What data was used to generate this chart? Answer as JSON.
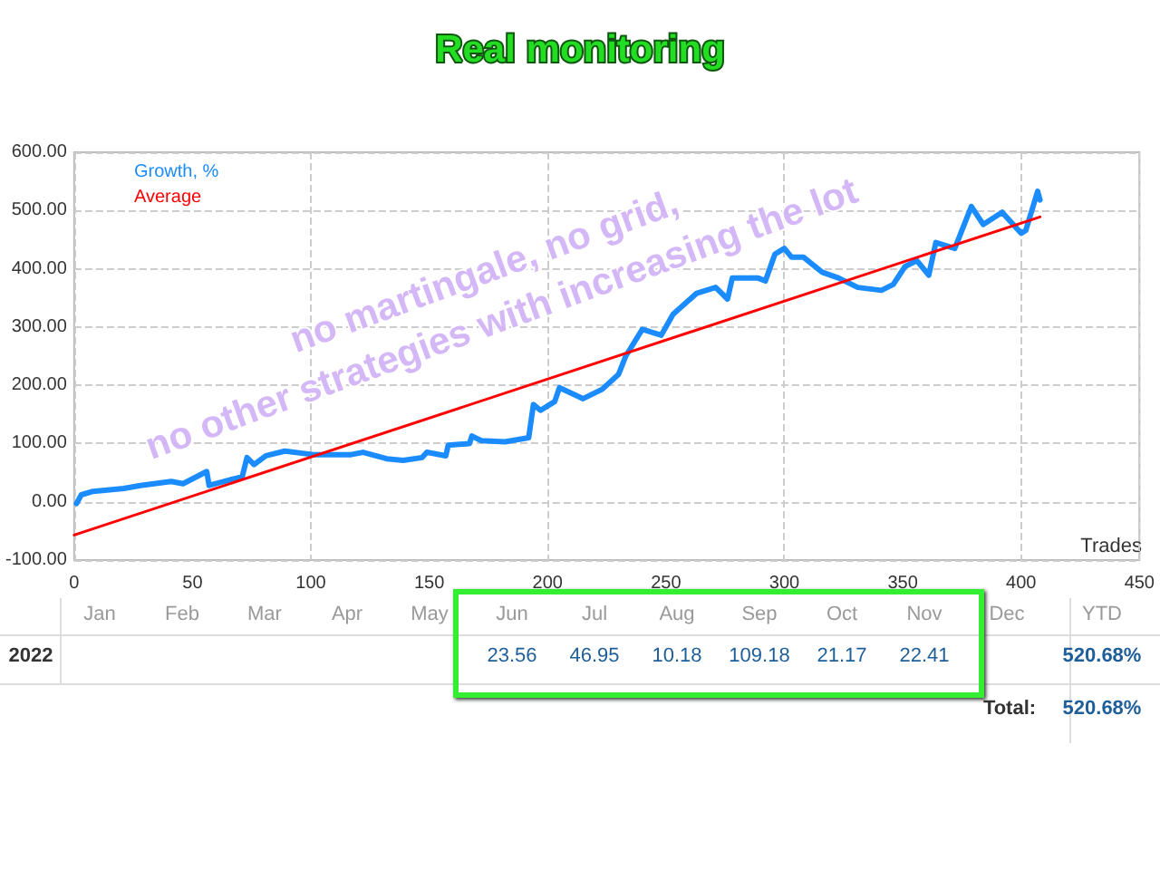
{
  "chart_data": [
    {
      "type": "line",
      "title": "Real monitoring",
      "xlabel": "Trades",
      "annotations": [
        "no martingale, no grid,\nno other strategies with increasing the lot"
      ],
      "xlim": [
        0,
        450
      ],
      "xticks": [
        0,
        50,
        100,
        150,
        200,
        250,
        300,
        350,
        400,
        450
      ],
      "ylim": [
        -100,
        600
      ],
      "yticks": [
        {
          "value": -100,
          "label": "-100.00"
        },
        {
          "value": 0,
          "label": "0.00"
        },
        {
          "value": 100,
          "label": "100.00"
        },
        {
          "value": 200,
          "label": "200.00"
        },
        {
          "value": 300,
          "label": "300.00"
        },
        {
          "value": 400,
          "label": "400.00"
        },
        {
          "value": 500,
          "label": "500.00"
        },
        {
          "value": 600,
          "label": "600.00"
        }
      ],
      "grid": true,
      "legend": "top left",
      "marker": "none",
      "line_style": "solid",
      "series": [
        {
          "name": "Growth, %",
          "color": "#1a8cff",
          "x": [
            1,
            3,
            8,
            21,
            28,
            41,
            46,
            56,
            57,
            66,
            71,
            73,
            76,
            81,
            89,
            101,
            117,
            122,
            132,
            139,
            147,
            149,
            157,
            158,
            167,
            168,
            172,
            182,
            192,
            194,
            197,
            203,
            205,
            215,
            223,
            230,
            233,
            240,
            248,
            253,
            263,
            271,
            276,
            278,
            289,
            292,
            296,
            300,
            303,
            308,
            316,
            323,
            331,
            341,
            346,
            351,
            356,
            361,
            364,
            372,
            379,
            384,
            392,
            400,
            402,
            407,
            408
          ],
          "values": [
            -3,
            12,
            18,
            23,
            28,
            35,
            31,
            52,
            28,
            38,
            43,
            76,
            64,
            79,
            87,
            81,
            81,
            85,
            74,
            71,
            76,
            85,
            79,
            97,
            100,
            113,
            105,
            103,
            110,
            167,
            157,
            172,
            196,
            177,
            193,
            219,
            250,
            296,
            286,
            322,
            358,
            368,
            348,
            384,
            384,
            379,
            425,
            435,
            420,
            420,
            394,
            384,
            368,
            363,
            373,
            404,
            414,
            389,
            445,
            435,
            507,
            476,
            497,
            461,
            466,
            533,
            518
          ]
        },
        {
          "name": "Average",
          "color": "#ff0000",
          "x": [
            0,
            408
          ],
          "values": [
            -57,
            489
          ]
        }
      ]
    },
    {
      "type": "other",
      "categories": [
        "Jan",
        "Feb",
        "Mar",
        "Apr",
        "May",
        "Jun",
        "Jul",
        "Aug",
        "Sep",
        "Oct",
        "Nov",
        "Dec",
        "YTD"
      ],
      "values": [
        null,
        null,
        null,
        null,
        null,
        23.56,
        46.95,
        10.18,
        109.18,
        21.17,
        22.41,
        null,
        520.68
      ],
      "value_labels": [
        null,
        null,
        null,
        null,
        null,
        "23.56",
        "46.95",
        "10.18",
        "109.18",
        "21.17",
        "22.41",
        null,
        "520.68%"
      ],
      "annotations": [
        "2022",
        "Total:",
        "520.68%"
      ]
    }
  ]
}
